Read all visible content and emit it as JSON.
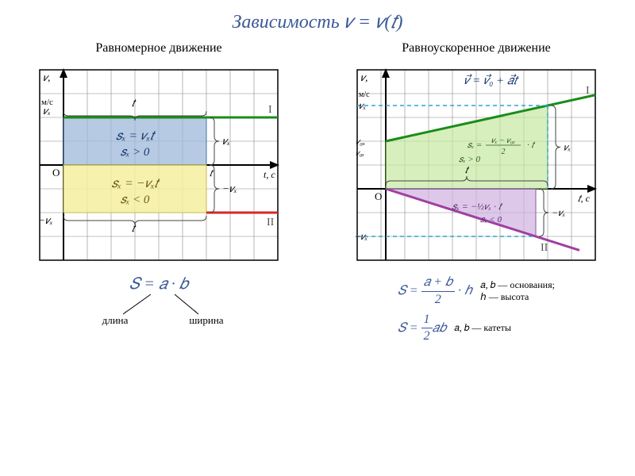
{
  "title": "Зависимость 𝑣 = 𝑣(𝑡)",
  "left": {
    "title": "Равномерное движение",
    "grid": {
      "cols": 10,
      "rows": 8,
      "cell": 30,
      "stroke": "#888888",
      "border": "#000000"
    },
    "axes": {
      "color": "#000000",
      "ox": 0.1,
      "oy": 0.5
    },
    "ylabel_top": "𝑣,",
    "ylabel_unit": "м/с",
    "vx_pos": "𝑣ₓ",
    "vx_neg": "−𝑣ₓ",
    "origin": "О",
    "xlabel": "t, с",
    "t_top": "𝑡",
    "t_bot": "𝑡",
    "vx_brace": "𝑣ₓ",
    "neg_vx_brace": "−𝑣ₓ",
    "t_label_right": "𝑡",
    "line_I": {
      "color": "#1a8c1a",
      "label": "I"
    },
    "line_II": {
      "color": "#d62828",
      "label": "II"
    },
    "rect_top": {
      "fill": "#9db9d9",
      "opacity": 0.75,
      "formula1": "𝑠ₓ = 𝑣ₓ𝑡",
      "formula2": "𝑠ₓ > 0"
    },
    "rect_bot": {
      "fill": "#f5f0a0",
      "opacity": 0.85,
      "formula1": "𝑠ₓ = −𝑣ₓ𝑡",
      "formula2": "𝑠ₓ < 0"
    },
    "below": {
      "formula": "𝑆 = 𝑎 · 𝑏",
      "l1": "длина",
      "l2": "ширина"
    }
  },
  "right": {
    "title": "Равноускоренное движение",
    "grid": {
      "cols": 10,
      "rows": 8,
      "cell": 30,
      "stroke": "#888888",
      "border": "#000000"
    },
    "axes": {
      "color": "#000000",
      "ox": 0.12,
      "oy": 0.625
    },
    "ylabel_top": "𝑣,",
    "ylabel_unit": "м/с",
    "top_eq": "𝑣⃗ = 𝑣⃗₀ + 𝑎⃗𝑡",
    "vx": "𝑣ₓ",
    "v0x": "𝑣₀ₓ",
    "v0x2": "𝑣₀ₓ",
    "neg_vx": "−𝑣ₓ",
    "origin": "О",
    "xlabel": "𝑡, с",
    "line_I": {
      "color": "#1a8c1a",
      "label": "I"
    },
    "line_II": {
      "color": "#a040a0",
      "label": "II"
    },
    "dash_color": "#2aa5d8",
    "trap": {
      "fill": "#c5e8a0",
      "opacity": 0.7,
      "formula": "𝑠ₓ = (𝑣ₓ − 𝑣₀ₓ)/2 · 𝑡",
      "formula2": "𝑠ₓ > 0"
    },
    "tri": {
      "fill": "#d0b0e0",
      "opacity": 0.7,
      "formula": "𝑠ₓ = −½𝑣ₓ · 𝑡",
      "formula2": "𝑠ₓ < 0"
    },
    "br_vx": "𝑣ₓ",
    "br_negvx": "−𝑣ₓ",
    "br_t": "𝑡",
    "below": {
      "f1": "𝑆 = (𝑎+𝑏)/2 · ℎ",
      "f1_note": "𝑎, 𝑏 — основания;",
      "f1_note2": "ℎ — высота",
      "f2": "𝑆 = ½𝑎𝑏",
      "f2_note": "𝑎, 𝑏 — катеты"
    }
  }
}
